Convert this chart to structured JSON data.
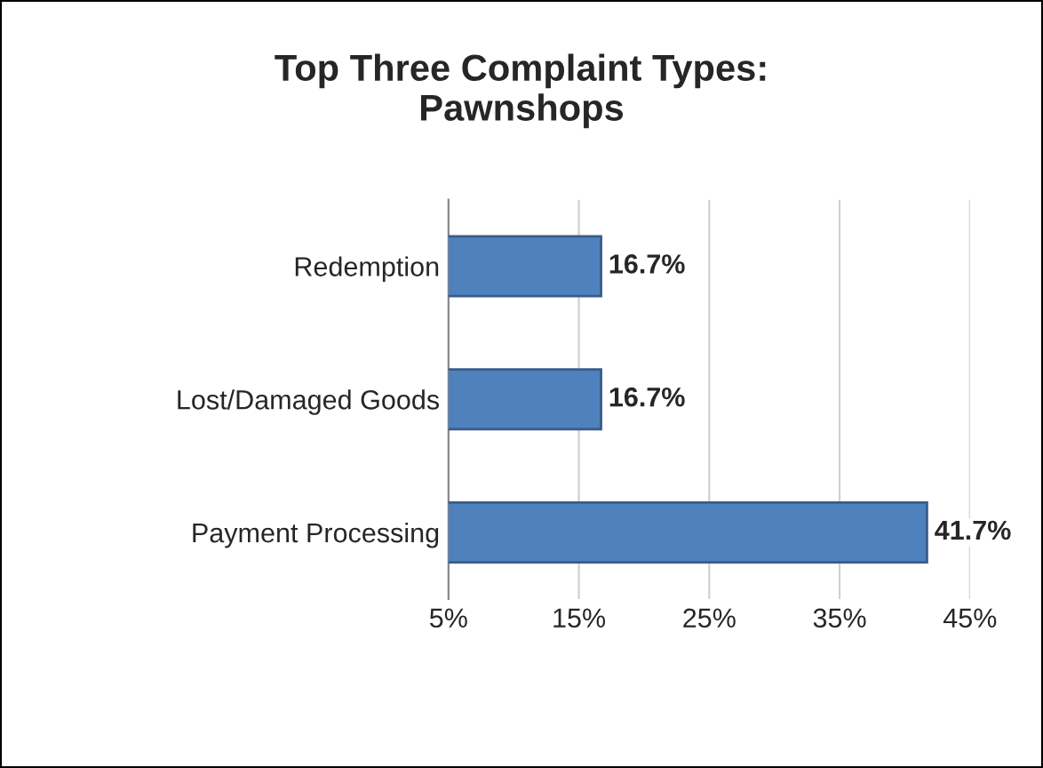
{
  "chart_data": {
    "type": "bar",
    "orientation": "horizontal",
    "title": "Top Three Complaint Types:\nPawnshops",
    "categories": [
      "Redemption",
      "Lost/Damaged Goods",
      "Payment Processing"
    ],
    "values": [
      16.7,
      16.7,
      41.7
    ],
    "value_labels": [
      "16.7%",
      "16.7%",
      "41.7%"
    ],
    "color": "#4f81bd",
    "xlim": [
      5,
      45
    ],
    "xticks": [
      {
        "value": 5,
        "label": "5%"
      },
      {
        "value": 15,
        "label": "15%"
      },
      {
        "value": 25,
        "label": "25%"
      },
      {
        "value": 35,
        "label": "35%"
      },
      {
        "value": 45,
        "label": "45%"
      }
    ],
    "grid": "x"
  }
}
